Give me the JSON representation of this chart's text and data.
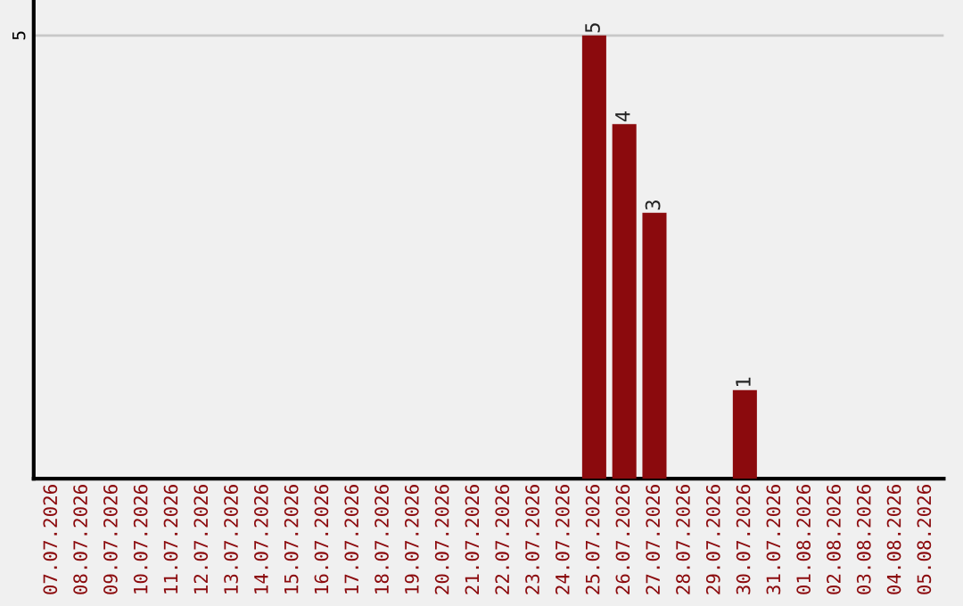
{
  "chart_data": {
    "type": "bar",
    "categories": [
      "07.07.2026",
      "08.07.2026",
      "09.07.2026",
      "10.07.2026",
      "11.07.2026",
      "12.07.2026",
      "13.07.2026",
      "14.07.2026",
      "15.07.2026",
      "16.07.2026",
      "17.07.2026",
      "18.07.2026",
      "19.07.2026",
      "20.07.2026",
      "21.07.2026",
      "22.07.2026",
      "23.07.2026",
      "24.07.2026",
      "25.07.2026",
      "26.07.2026",
      "27.07.2026",
      "28.07.2026",
      "29.07.2026",
      "30.07.2026",
      "31.07.2026",
      "01.08.2026",
      "02.08.2026",
      "03.08.2026",
      "04.08.2026",
      "05.08.2026"
    ],
    "values": [
      null,
      null,
      null,
      null,
      null,
      null,
      null,
      null,
      null,
      null,
      null,
      null,
      null,
      null,
      null,
      null,
      null,
      null,
      5,
      4,
      3,
      null,
      null,
      1,
      null,
      null,
      null,
      null,
      null,
      null
    ],
    "data_labels": true,
    "color": "#8b0a0d",
    "ylim": [
      0,
      5.4
    ],
    "yticks": [
      {
        "value": 0,
        "label": null
      },
      5
    ],
    "grid": "y"
  }
}
